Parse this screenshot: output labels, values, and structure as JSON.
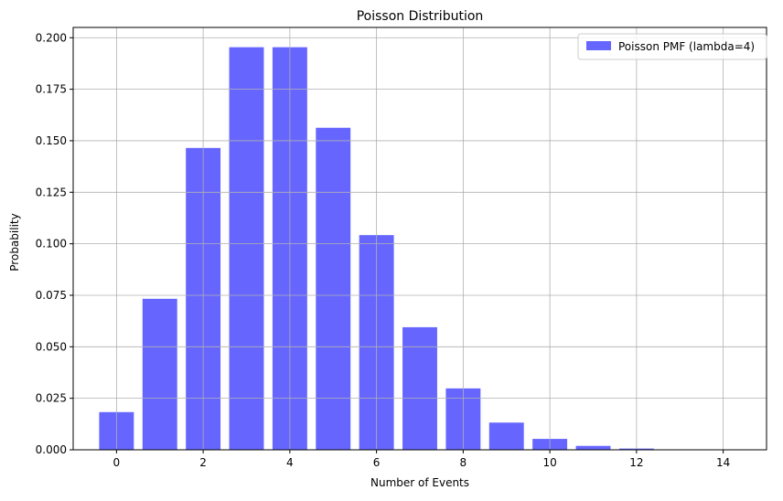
{
  "chart_data": {
    "type": "bar",
    "title": "Poisson Distribution",
    "xlabel": "Number of Events",
    "ylabel": "Probability",
    "x": [
      0,
      1,
      2,
      3,
      4,
      5,
      6,
      7,
      8,
      9,
      10,
      11,
      12,
      13,
      14
    ],
    "series": [
      {
        "name": "Poisson PMF (lambda=4)",
        "values": [
          0.0183,
          0.0733,
          0.1465,
          0.1954,
          0.1954,
          0.1563,
          0.1042,
          0.0595,
          0.0298,
          0.0132,
          0.0053,
          0.0019,
          0.0006,
          0.0002,
          0.0001
        ]
      }
    ],
    "xlim": [
      -1,
      15
    ],
    "ylim": [
      0,
      0.205
    ],
    "xticks": [
      0,
      2,
      4,
      6,
      8,
      10,
      12,
      14
    ],
    "xtick_labels": [
      "0",
      "2",
      "4",
      "6",
      "8",
      "10",
      "12",
      "14"
    ],
    "yticks": [
      0.0,
      0.025,
      0.05,
      0.075,
      0.1,
      0.125,
      0.15,
      0.175,
      0.2
    ],
    "ytick_labels": [
      "0.000",
      "0.025",
      "0.050",
      "0.075",
      "0.100",
      "0.125",
      "0.150",
      "0.175",
      "0.200"
    ],
    "grid": true,
    "legend_position": "top-right",
    "bar_color": "#6666ff",
    "grid_color": "#b0b0b0"
  }
}
